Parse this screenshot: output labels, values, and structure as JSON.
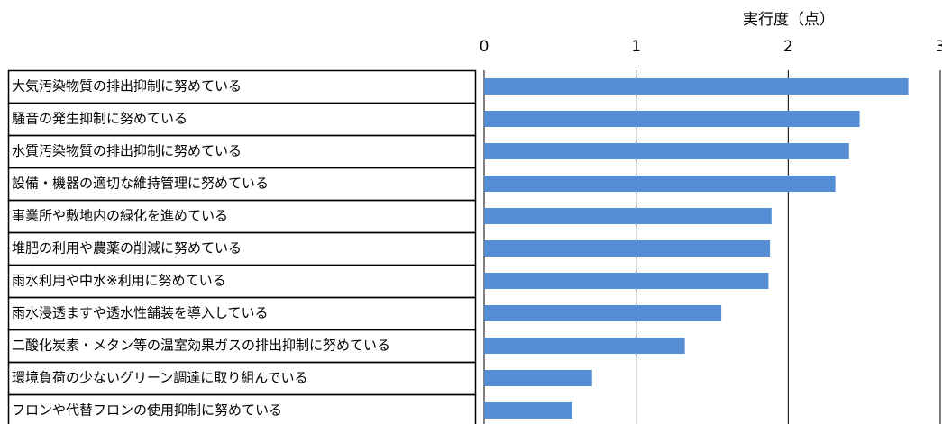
{
  "chart_data": {
    "type": "bar",
    "orientation": "horizontal",
    "x_axis_label": "実行度（点）",
    "categories": [
      "大気汚染物質の排出抑制に努めている",
      "騒音の発生抑制に努めている",
      "水質汚染物質の排出抑制に努めている",
      "設備・機器の適切な維持管理に努めている",
      "事業所や敷地内の緑化を進めている",
      "堆肥の利用や農薬の削減に努めている",
      "雨水利用や中水※利用に努めている",
      "雨水浸透ますや透水性舗装を導入している",
      "二酸化炭素・メタン等の温室効果ガスの排出抑制に努めている",
      "環境負荷の少ないグリーン調達に取り組んでいる",
      "フロンや代替フロンの使用抑制に努めている"
    ],
    "values": [
      2.79,
      2.47,
      2.4,
      2.31,
      1.89,
      1.88,
      1.87,
      1.56,
      1.32,
      0.71,
      0.58
    ],
    "color": "#558ed5",
    "xlim": [
      0,
      3
    ],
    "xticks": [
      0,
      1,
      2,
      3
    ],
    "grid": true
  }
}
